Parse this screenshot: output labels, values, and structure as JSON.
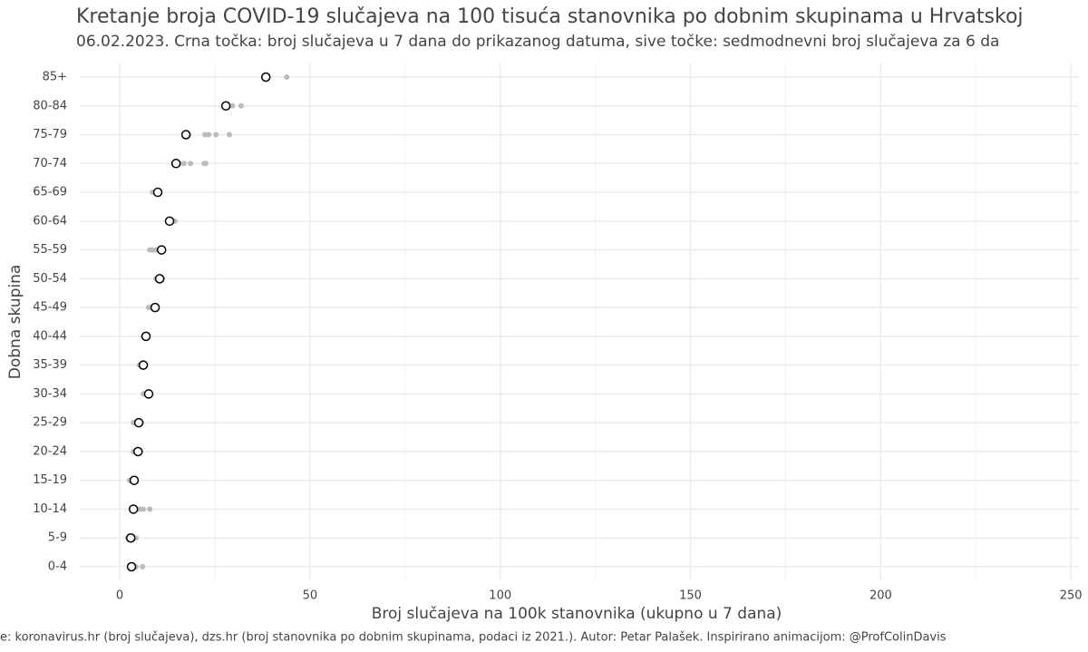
{
  "chart_data": {
    "type": "dot",
    "title": "Kretanje broja COVID-19 slučajeva na 100 tisuća stanovnika po dobnim skupinama u Hrvatskoj",
    "subtitle": "06.02.2023. Crna točka: broj slučajeva u 7 dana do prikazanog datuma, sive točke: sedmodnevni broj slučajeva za 6 da",
    "x_label": "Broj slučajeva na 100k stanovnika (ukupno u 7 dana)",
    "y_label": "Dobna skupina",
    "caption": "e: koronavirus.hr (broj slučajeva), dzs.hr (broj stanovnika po dobnim skupinama, podaci iz 2021.). Autor: Petar Palašek. Inspirirano animacijom: @ProfColinDavis",
    "categories": [
      "0-4",
      "5-9",
      "10-14",
      "15-19",
      "20-24",
      "25-29",
      "30-34",
      "35-39",
      "40-44",
      "45-49",
      "50-54",
      "55-59",
      "60-64",
      "65-69",
      "70-74",
      "75-79",
      "80-84",
      "85+"
    ],
    "xlim": [
      -10.5,
      252.1
    ],
    "xticks": [
      0,
      50,
      100,
      150,
      200,
      250
    ],
    "grid": true,
    "series": [
      {
        "color": "#bbbbbb",
        "values": [
          6.0,
          2.1,
          7.9,
          2.6,
          3.6,
          3.6,
          6.2,
          5.2,
          7.4,
          7.6,
          9.5,
          7.9,
          14.5,
          8.6,
          22.6,
          28.8,
          31.9,
          43.9
        ]
      },
      {
        "color": "#bbbbbb",
        "values": [
          4.3,
          2.6,
          6.2,
          3.1,
          4.1,
          4.1,
          6.7,
          5.7,
          6.7,
          8.1,
          10.0,
          8.6,
          13.8,
          9.5,
          22.2,
          25.3,
          29.6,
          38.5
        ]
      },
      {
        "color": "#bbbbbb",
        "values": [
          3.8,
          3.1,
          5.2,
          3.3,
          4.3,
          4.5,
          7.1,
          6.0,
          6.2,
          8.6,
          10.7,
          9.5,
          12.9,
          10.5,
          18.6,
          23.4,
          28.1,
          38.0
        ]
      },
      {
        "color": "#bbbbbb",
        "values": [
          3.3,
          4.3,
          4.5,
          4.1,
          5.0,
          5.5,
          7.9,
          6.7,
          7.1,
          9.1,
          11.2,
          10.2,
          13.3,
          9.1,
          16.9,
          22.4,
          27.4,
          38.0
        ]
      },
      {
        "color": "#bbbbbb",
        "values": [
          2.9,
          3.8,
          4.1,
          4.3,
          5.5,
          5.7,
          8.1,
          6.4,
          6.9,
          9.5,
          10.5,
          10.7,
          12.6,
          9.8,
          15.7,
          18.1,
          27.9,
          38.2
        ]
      },
      {
        "color": "#bbbbbb",
        "values": [
          2.6,
          3.3,
          3.8,
          3.6,
          4.8,
          5.0,
          7.4,
          6.2,
          6.4,
          9.3,
          11.0,
          11.4,
          13.1,
          10.2,
          14.8,
          16.9,
          27.6,
          38.4
        ]
      },
      {
        "color": "#000000",
        "values": [
          3.1,
          2.9,
          3.6,
          3.8,
          4.8,
          5.0,
          7.6,
          6.2,
          6.9,
          9.3,
          10.5,
          11.0,
          13.1,
          10.0,
          14.8,
          17.4,
          27.9,
          38.4
        ]
      }
    ]
  }
}
